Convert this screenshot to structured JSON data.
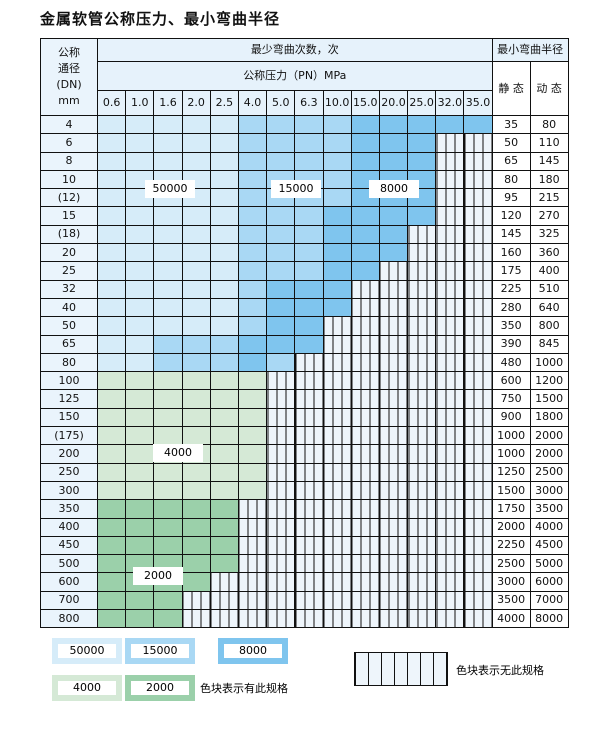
{
  "title": "金属软管公称压力、最小弯曲半径",
  "header": {
    "dn_label": [
      "公称",
      "通径",
      "(DN)",
      "mm"
    ],
    "cycles_label": "最少弯曲次数，次",
    "pressure_label": "公称压力（PN）MPa",
    "radius_label": "最小弯曲半径",
    "static_label": "静 态",
    "dynamic_label": "动 态",
    "pressures": [
      "0.6",
      "1.0",
      "1.6",
      "2.0",
      "2.5",
      "4.0",
      "5.0",
      "6.3",
      "10.0",
      "15.0",
      "20.0",
      "25.0",
      "32.0",
      "35.0"
    ]
  },
  "cell_legend": {
    "A": "50000",
    "B": "15000",
    "C": "8000",
    "G": "4000",
    "H": "2000",
    "X": "none"
  },
  "rows": [
    {
      "dn": "4",
      "cells": "AAAAABBBBCCCCC",
      "static": "35",
      "dynamic": "80"
    },
    {
      "dn": "6",
      "cells": "AAAAABBBBCCCXX",
      "static": "50",
      "dynamic": "110"
    },
    {
      "dn": "8",
      "cells": "AAAAABBBBCCCXX",
      "static": "65",
      "dynamic": "145"
    },
    {
      "dn": "10",
      "cells": "AAAAABBBBCCCXX",
      "static": "80",
      "dynamic": "180"
    },
    {
      "dn": "(12)",
      "cells": "AAAAABBBBCCCXX",
      "static": "95",
      "dynamic": "215"
    },
    {
      "dn": "15",
      "cells": "AAAAABBBCCCCXX",
      "static": "120",
      "dynamic": "270"
    },
    {
      "dn": "(18)",
      "cells": "AAAAABBBCCCXXX",
      "static": "145",
      "dynamic": "325"
    },
    {
      "dn": "20",
      "cells": "AAAAABBBCCCXXX",
      "static": "160",
      "dynamic": "360"
    },
    {
      "dn": "25",
      "cells": "AAAAABBBCCXXXX",
      "static": "175",
      "dynamic": "400"
    },
    {
      "dn": "32",
      "cells": "AAAAABCCCXXXXX",
      "static": "225",
      "dynamic": "510"
    },
    {
      "dn": "40",
      "cells": "AAAAABCCCXXXXX",
      "static": "280",
      "dynamic": "640"
    },
    {
      "dn": "50",
      "cells": "AAAAABCCXXXXXX",
      "static": "350",
      "dynamic": "800"
    },
    {
      "dn": "65",
      "cells": "AABBBCCCXXXXXX",
      "static": "390",
      "dynamic": "845"
    },
    {
      "dn": "80",
      "cells": "AABBBCBXXXXXXX",
      "static": "480",
      "dynamic": "1000"
    },
    {
      "dn": "100",
      "cells": "GGGGGGXXXXXXXX",
      "static": "600",
      "dynamic": "1200"
    },
    {
      "dn": "125",
      "cells": "GGGGGGXXXXXXXX",
      "static": "750",
      "dynamic": "1500"
    },
    {
      "dn": "150",
      "cells": "GGGGGGXXXXXXXX",
      "static": "900",
      "dynamic": "1800"
    },
    {
      "dn": "(175)",
      "cells": "GGGGGGXXXXXXXX",
      "static": "1000",
      "dynamic": "2000"
    },
    {
      "dn": "200",
      "cells": "GGGGGGXXXXXXXX",
      "static": "1000",
      "dynamic": "2000"
    },
    {
      "dn": "250",
      "cells": "GGGGGGXXXXXXXX",
      "static": "1250",
      "dynamic": "2500"
    },
    {
      "dn": "300",
      "cells": "GGGGGGXXXXXXXX",
      "static": "1500",
      "dynamic": "3000"
    },
    {
      "dn": "350",
      "cells": "HHHHHXXXXXXXXX",
      "static": "1750",
      "dynamic": "3500"
    },
    {
      "dn": "400",
      "cells": "HHHHHXXXXXXXXX",
      "static": "2000",
      "dynamic": "4000"
    },
    {
      "dn": "450",
      "cells": "HHHHHXXXXXXXXX",
      "static": "2250",
      "dynamic": "4500"
    },
    {
      "dn": "500",
      "cells": "HHHHHXXXXXXXXX",
      "static": "2500",
      "dynamic": "5000"
    },
    {
      "dn": "600",
      "cells": "HHHHXXXXXXXXXX",
      "static": "3000",
      "dynamic": "6000"
    },
    {
      "dn": "700",
      "cells": "HHHXXXXXXXXXXX",
      "static": "3500",
      "dynamic": "7000"
    },
    {
      "dn": "800",
      "cells": "HHHXXXXXXXXXXX",
      "static": "4000",
      "dynamic": "8000"
    }
  ],
  "region_labels": {
    "a": "50000",
    "b": "15000",
    "c": "8000",
    "g": "4000",
    "h": "2000"
  },
  "legend": {
    "items": [
      {
        "label": "50000",
        "color": "#d6ecf9"
      },
      {
        "label": "15000",
        "color": "#a9d8f4"
      },
      {
        "label": "8000",
        "color": "#7fc5ee"
      },
      {
        "label": "4000",
        "color": "#d5e9d6"
      },
      {
        "label": "2000",
        "color": "#9bd0aa"
      }
    ],
    "has_spec_text": "色块表示有此规格",
    "no_spec_text": "色块表示无此规格"
  }
}
